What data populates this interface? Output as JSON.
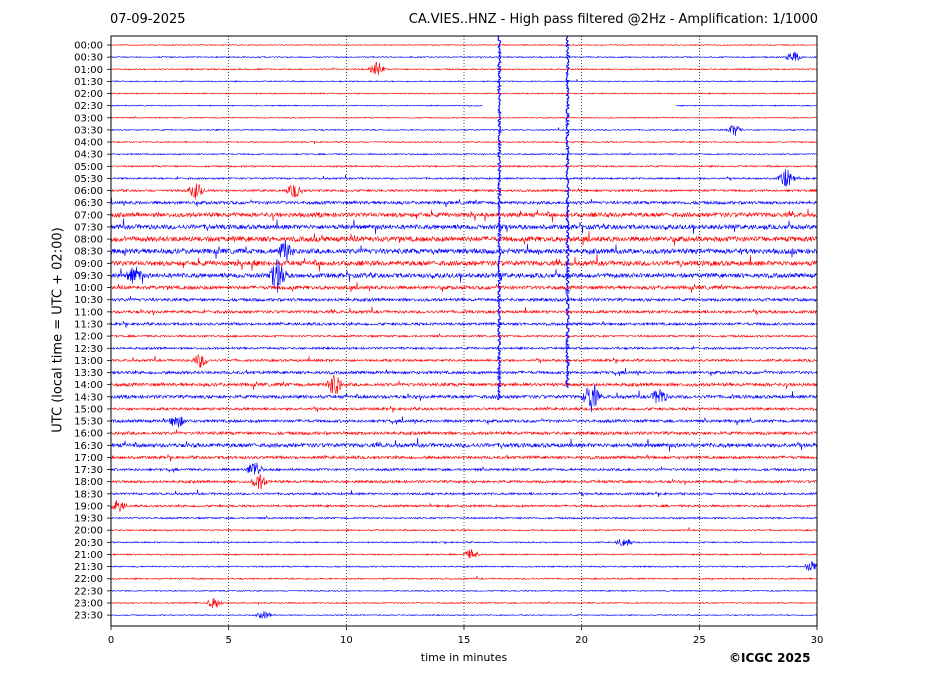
{
  "header": {
    "date": "07-09-2025",
    "title": "CA.VIES..HNZ - High pass filtered @2Hz - Amplification: 1/1000"
  },
  "footer": {
    "copyright": "©ICGC 2025"
  },
  "chart_data": {
    "type": "line",
    "title": "CA.VIES..HNZ - High pass filtered @2Hz - Amplification: 1/1000",
    "xlabel": "time in minutes",
    "ylabel": "UTC (local time = UTC + 02:00)",
    "xlim": [
      0,
      30
    ],
    "x_ticks": [
      0,
      5,
      10,
      15,
      20,
      25,
      30
    ],
    "x_tick_labels": [
      "0",
      "5",
      "10",
      "15",
      "20",
      "25",
      "30"
    ],
    "grid": "vertical dotted",
    "row_labels": [
      "00:00",
      "00:30",
      "01:00",
      "01:30",
      "02:00",
      "02:30",
      "03:00",
      "03:30",
      "04:00",
      "04:30",
      "05:00",
      "05:30",
      "06:00",
      "06:30",
      "07:00",
      "07:30",
      "08:00",
      "08:30",
      "09:00",
      "09:30",
      "10:00",
      "10:30",
      "11:00",
      "11:30",
      "12:00",
      "12:30",
      "13:00",
      "13:30",
      "14:00",
      "14:30",
      "15:00",
      "15:30",
      "16:00",
      "16:30",
      "17:00",
      "17:30",
      "18:00",
      "18:30",
      "19:00",
      "19:30",
      "20:00",
      "20:30",
      "21:00",
      "21:30",
      "22:00",
      "22:30",
      "23:00",
      "23:30"
    ],
    "series_colors": [
      "#ff0000",
      "#0000ff"
    ],
    "activity_by_row": [
      0.05,
      0.1,
      0.12,
      0.08,
      0.08,
      0.06,
      0.05,
      0.1,
      0.1,
      0.12,
      0.18,
      0.22,
      0.3,
      0.5,
      0.8,
      0.8,
      0.95,
      0.95,
      0.9,
      0.8,
      0.6,
      0.5,
      0.45,
      0.4,
      0.25,
      0.3,
      0.35,
      0.45,
      0.55,
      0.55,
      0.4,
      0.45,
      0.5,
      0.7,
      0.45,
      0.35,
      0.4,
      0.3,
      0.3,
      0.2,
      0.15,
      0.12,
      0.12,
      0.12,
      0.15,
      0.08,
      0.1,
      0.06
    ],
    "events": [
      {
        "row": 2,
        "minute": 11.3,
        "amp": 8
      },
      {
        "row": 1,
        "minute": 29.0,
        "amp": 6
      },
      {
        "row": 7,
        "minute": 26.5,
        "amp": 6
      },
      {
        "row": 11,
        "minute": 28.7,
        "amp": 10
      },
      {
        "row": 12,
        "minute": 3.6,
        "amp": 8
      },
      {
        "row": 12,
        "minute": 7.8,
        "amp": 7
      },
      {
        "row": 17,
        "minute": 7.4,
        "amp": 10
      },
      {
        "row": 19,
        "minute": 7.1,
        "amp": 18
      },
      {
        "row": 19,
        "minute": 1.0,
        "amp": 9
      },
      {
        "row": 26,
        "minute": 3.8,
        "amp": 7
      },
      {
        "row": 28,
        "minute": 9.5,
        "amp": 12
      },
      {
        "row": 29,
        "minute": 20.4,
        "amp": 16
      },
      {
        "row": 29,
        "minute": 23.3,
        "amp": 9
      },
      {
        "row": 31,
        "minute": 2.8,
        "amp": 7
      },
      {
        "row": 35,
        "minute": 6.1,
        "amp": 9
      },
      {
        "row": 36,
        "minute": 6.3,
        "amp": 8
      },
      {
        "row": 38,
        "minute": 0.3,
        "amp": 6
      },
      {
        "row": 41,
        "minute": 21.8,
        "amp": 5
      },
      {
        "row": 42,
        "minute": 15.3,
        "amp": 5
      },
      {
        "row": 43,
        "minute": 29.8,
        "amp": 6
      },
      {
        "row": 46,
        "minute": 4.4,
        "amp": 6
      },
      {
        "row": 47,
        "minute": 6.5,
        "amp": 4
      }
    ],
    "vertical_spikes": [
      {
        "minute": 16.5,
        "from_row": 0,
        "to_row": 29
      },
      {
        "minute": 19.4,
        "from_row": 0,
        "to_row": 28
      }
    ],
    "gaps": [
      {
        "row": 5,
        "from_minute": 15.8,
        "to_minute": 24.0
      }
    ]
  }
}
